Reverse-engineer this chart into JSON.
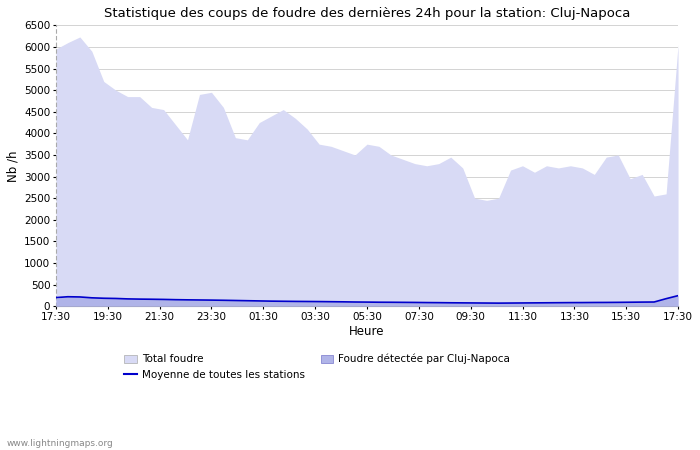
{
  "title": "Statistique des coups de foudre des dernières 24h pour la station: Cluj-Napoca",
  "ylabel": "Nb /h",
  "xlabel": "Heure",
  "watermark": "www.lightningmaps.org",
  "ylim": [
    0,
    6500
  ],
  "yticks": [
    0,
    500,
    1000,
    1500,
    2000,
    2500,
    3000,
    3500,
    4000,
    4500,
    5000,
    5500,
    6000,
    6500
  ],
  "xtick_labels": [
    "17:30",
    "19:30",
    "21:30",
    "23:30",
    "01:30",
    "03:30",
    "05:30",
    "07:30",
    "09:30",
    "11:30",
    "13:30",
    "15:30",
    "17:30"
  ],
  "total_foudre_color": "#d8daf5",
  "cluj_color": "#b0b4e8",
  "moyenne_color": "#0000cc",
  "background_color": "#ffffff",
  "grid_color": "#cccccc",
  "total_foudre": [
    5950,
    6100,
    6230,
    5900,
    5200,
    5000,
    4850,
    4850,
    4600,
    4550,
    4200,
    3850,
    4900,
    4950,
    4600,
    3900,
    3850,
    4250,
    4400,
    4550,
    4350,
    4100,
    3750,
    3700,
    3600,
    3500,
    3750,
    3700,
    3500,
    3400,
    3300,
    3250,
    3300,
    3450,
    3200,
    2500,
    2450,
    2500,
    3150,
    3250,
    3100,
    3250,
    3200,
    3250,
    3200,
    3050,
    3450,
    3500,
    2950,
    3050,
    2550,
    2600,
    6050
  ],
  "cluj_napoca": [
    180,
    230,
    220,
    200,
    190,
    185,
    175,
    170,
    165,
    160,
    155,
    150,
    148,
    145,
    140,
    135,
    130,
    125,
    120,
    118,
    115,
    112,
    110,
    108,
    105,
    100,
    98,
    95,
    95,
    93,
    90,
    88,
    85,
    83,
    80,
    78,
    75,
    73,
    75,
    78,
    80,
    82,
    83,
    85,
    87,
    88,
    90,
    92,
    95,
    98,
    100,
    180,
    250
  ],
  "moyenne": [
    200,
    220,
    215,
    195,
    185,
    180,
    170,
    165,
    162,
    158,
    152,
    148,
    145,
    142,
    138,
    133,
    128,
    123,
    118,
    115,
    112,
    110,
    108,
    105,
    102,
    98,
    96,
    93,
    92,
    90,
    88,
    85,
    83,
    80,
    78,
    76,
    74,
    72,
    74,
    76,
    78,
    80,
    82,
    84,
    85,
    87,
    88,
    90,
    93,
    96,
    98,
    175,
    245
  ]
}
